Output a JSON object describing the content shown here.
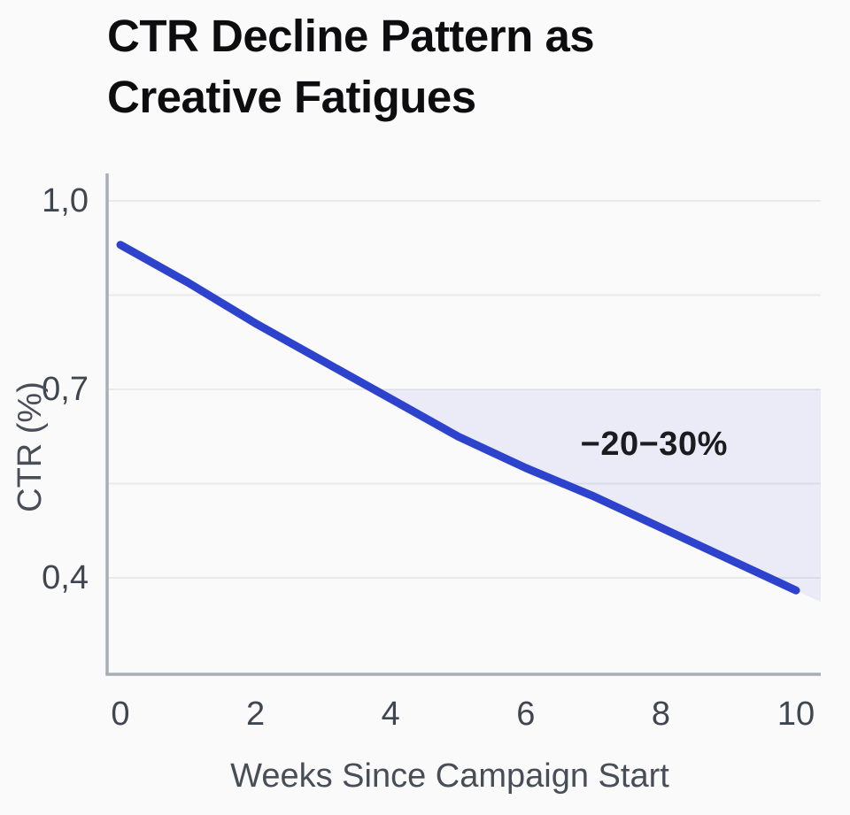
{
  "page": {
    "background": "#fafafa"
  },
  "title": {
    "full": "CTR Decline Pattern as Creative Fatigues",
    "line1": "CTR Decline Pattern as",
    "line2": "Creative Fatigues"
  },
  "chart_data": {
    "type": "line",
    "title": "CTR Decline Pattern as Creative Fatigues",
    "xlabel": "Weeks Since Campaign Start",
    "ylabel": "CTR (%)",
    "x": [
      0,
      1,
      2,
      3,
      4,
      5,
      6,
      7,
      8,
      9,
      10
    ],
    "series": [
      {
        "name": "CTR",
        "values": [
          0.93,
          0.87,
          0.805,
          0.745,
          0.685,
          0.625,
          0.575,
          0.53,
          0.48,
          0.43,
          0.38
        ],
        "color": "#2d43cd",
        "stroke_width": 9
      }
    ],
    "xlim": [
      0,
      10
    ],
    "ylim": [
      0.25,
      1.04
    ],
    "xticks": [
      0,
      2,
      4,
      6,
      8,
      10
    ],
    "yticks": [
      {
        "value": 1.0,
        "label": "1,0"
      },
      {
        "value": 0.7,
        "label": "0,7"
      },
      {
        "value": 0.4,
        "label": "0,4"
      }
    ],
    "gridline_values": [
      1.0,
      0.85,
      0.7,
      0.55,
      0.4
    ],
    "grid": "horizontal-only",
    "decimal_separator": ",",
    "band": {
      "type": "area-between-line-and-threshold",
      "threshold": 0.7,
      "fill": "rgba(45,67,205,0.08)"
    },
    "annotation": {
      "text": "−20−30%",
      "x": 7.9,
      "y": 0.613
    },
    "colors": {
      "gridline": "#e9eaec",
      "axis_line": "#a8aeb6",
      "tick_text": "#3f4650",
      "annotation_text": "#1b1c20"
    }
  }
}
